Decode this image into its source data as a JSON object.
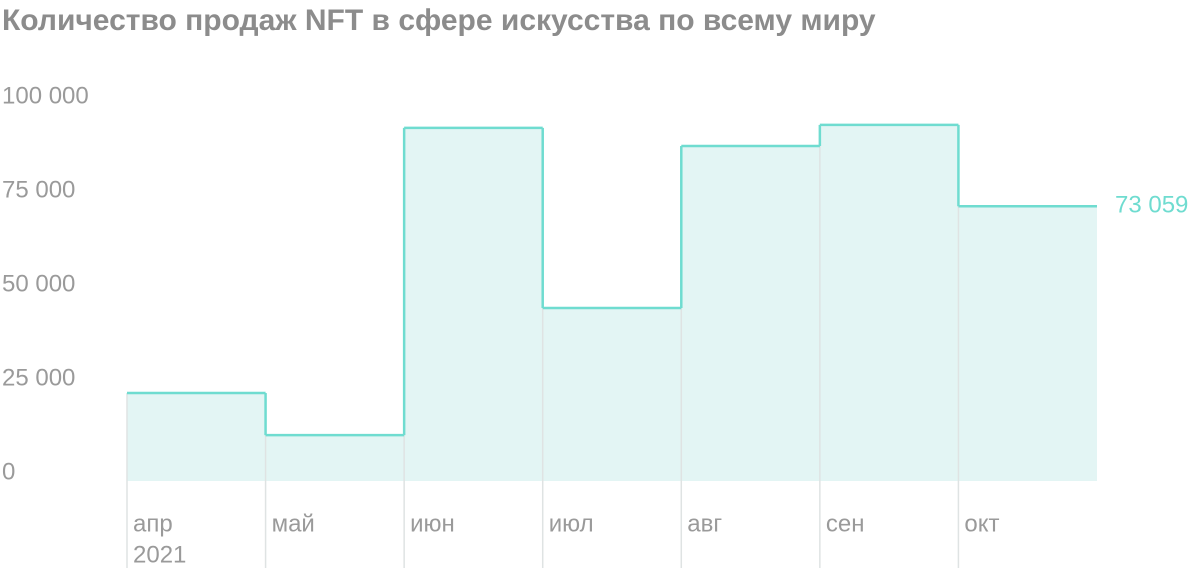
{
  "chart_data": {
    "type": "step",
    "title": "Количество продаж NFT в сфере искусства по всему миру",
    "categories": [
      "апр",
      "май",
      "июн",
      "июл",
      "авг",
      "сен",
      "окт"
    ],
    "year_label": "2021",
    "values": [
      23400,
      12200,
      93900,
      46000,
      89100,
      94700,
      73059
    ],
    "value_labels": [
      null,
      null,
      null,
      null,
      null,
      null,
      "73 059"
    ],
    "color": "#6fdcd0",
    "fill": "#e3f5f4",
    "ylim": [
      0,
      100000
    ],
    "yticks": [
      0,
      {
        "value": 25000,
        "label": "25 000"
      },
      {
        "value": 50000,
        "label": "50 000"
      },
      {
        "value": 75000,
        "label": "75 000"
      },
      {
        "value": 100000,
        "label": "100 000"
      }
    ]
  }
}
